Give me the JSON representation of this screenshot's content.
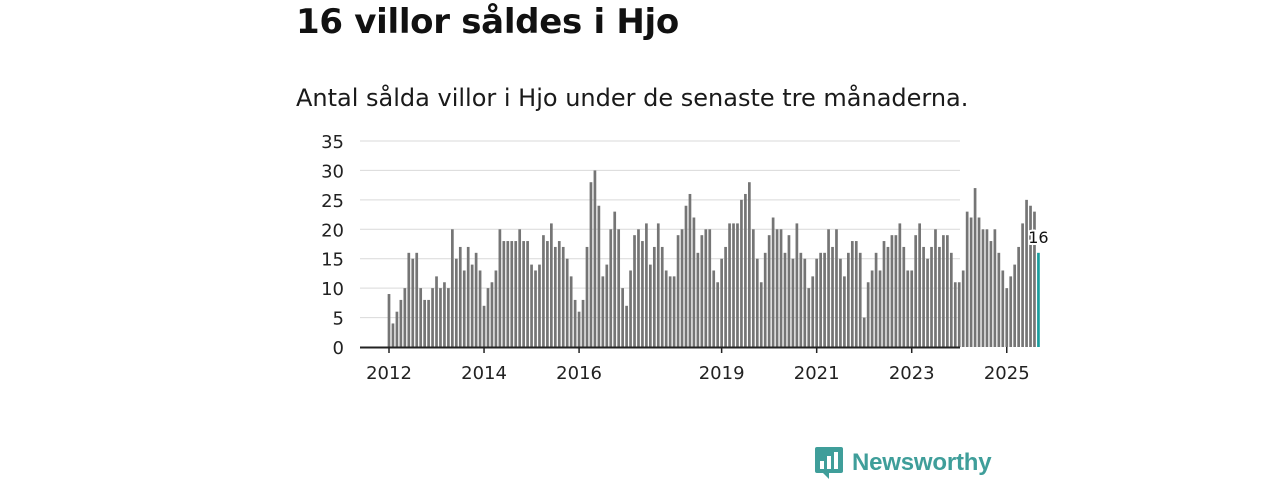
{
  "page": {
    "title": "16 villor såldes i Hjo",
    "subtitle": "Antal sålda villor i Hjo under de senaste tre månaderna.",
    "brand": "Newsworthy"
  },
  "colors": {
    "bar": "#757575",
    "highlight": "#1a9d9e",
    "brand": "#3f9e9a",
    "grid": "#d9d9d9",
    "axis": "#222222"
  },
  "chart_data": {
    "type": "bar",
    "title": "16 villor såldes i Hjo",
    "subtitle": "Antal sålda villor i Hjo under de senaste tre månaderna.",
    "xlabel": "",
    "ylabel": "",
    "ylim": [
      0,
      35
    ],
    "yticks": [
      0,
      5,
      10,
      15,
      20,
      25,
      30,
      35
    ],
    "xticks": [
      {
        "label": "2012",
        "index": 0
      },
      {
        "label": "2014",
        "index": 24
      },
      {
        "label": "2016",
        "index": 48
      },
      {
        "label": "2019",
        "index": 84
      },
      {
        "label": "2021",
        "index": 108
      },
      {
        "label": "2023",
        "index": 132
      },
      {
        "label": "2025",
        "index": 156
      }
    ],
    "grid": true,
    "highlight_index": 164,
    "highlight_label": "16",
    "values": [
      9,
      4,
      6,
      8,
      10,
      16,
      15,
      16,
      10,
      8,
      8,
      10,
      12,
      10,
      11,
      10,
      20,
      15,
      17,
      13,
      17,
      14,
      16,
      13,
      7,
      10,
      11,
      13,
      20,
      18,
      18,
      18,
      18,
      20,
      18,
      18,
      14,
      13,
      14,
      19,
      18,
      21,
      17,
      18,
      17,
      15,
      12,
      8,
      6,
      8,
      17,
      28,
      30,
      24,
      12,
      14,
      20,
      23,
      20,
      10,
      7,
      13,
      19,
      20,
      18,
      21,
      14,
      17,
      21,
      17,
      13,
      12,
      12,
      19,
      20,
      24,
      26,
      22,
      16,
      19,
      20,
      20,
      13,
      11,
      15,
      17,
      21,
      21,
      21,
      25,
      26,
      28,
      20,
      15,
      11,
      16,
      19,
      22,
      20,
      20,
      16,
      19,
      15,
      21,
      16,
      15,
      10,
      12,
      15,
      16,
      16,
      20,
      17,
      20,
      15,
      12,
      16,
      18,
      18,
      16,
      5,
      11,
      13,
      16,
      13,
      18,
      17,
      19,
      19,
      21,
      17,
      13,
      13,
      19,
      21,
      17,
      15,
      17,
      20,
      17,
      19,
      19,
      16,
      11,
      11,
      13,
      23,
      22,
      27,
      22,
      20,
      20,
      18,
      20,
      16,
      13,
      10,
      12,
      14,
      17,
      21,
      25,
      24,
      23,
      16
    ]
  }
}
